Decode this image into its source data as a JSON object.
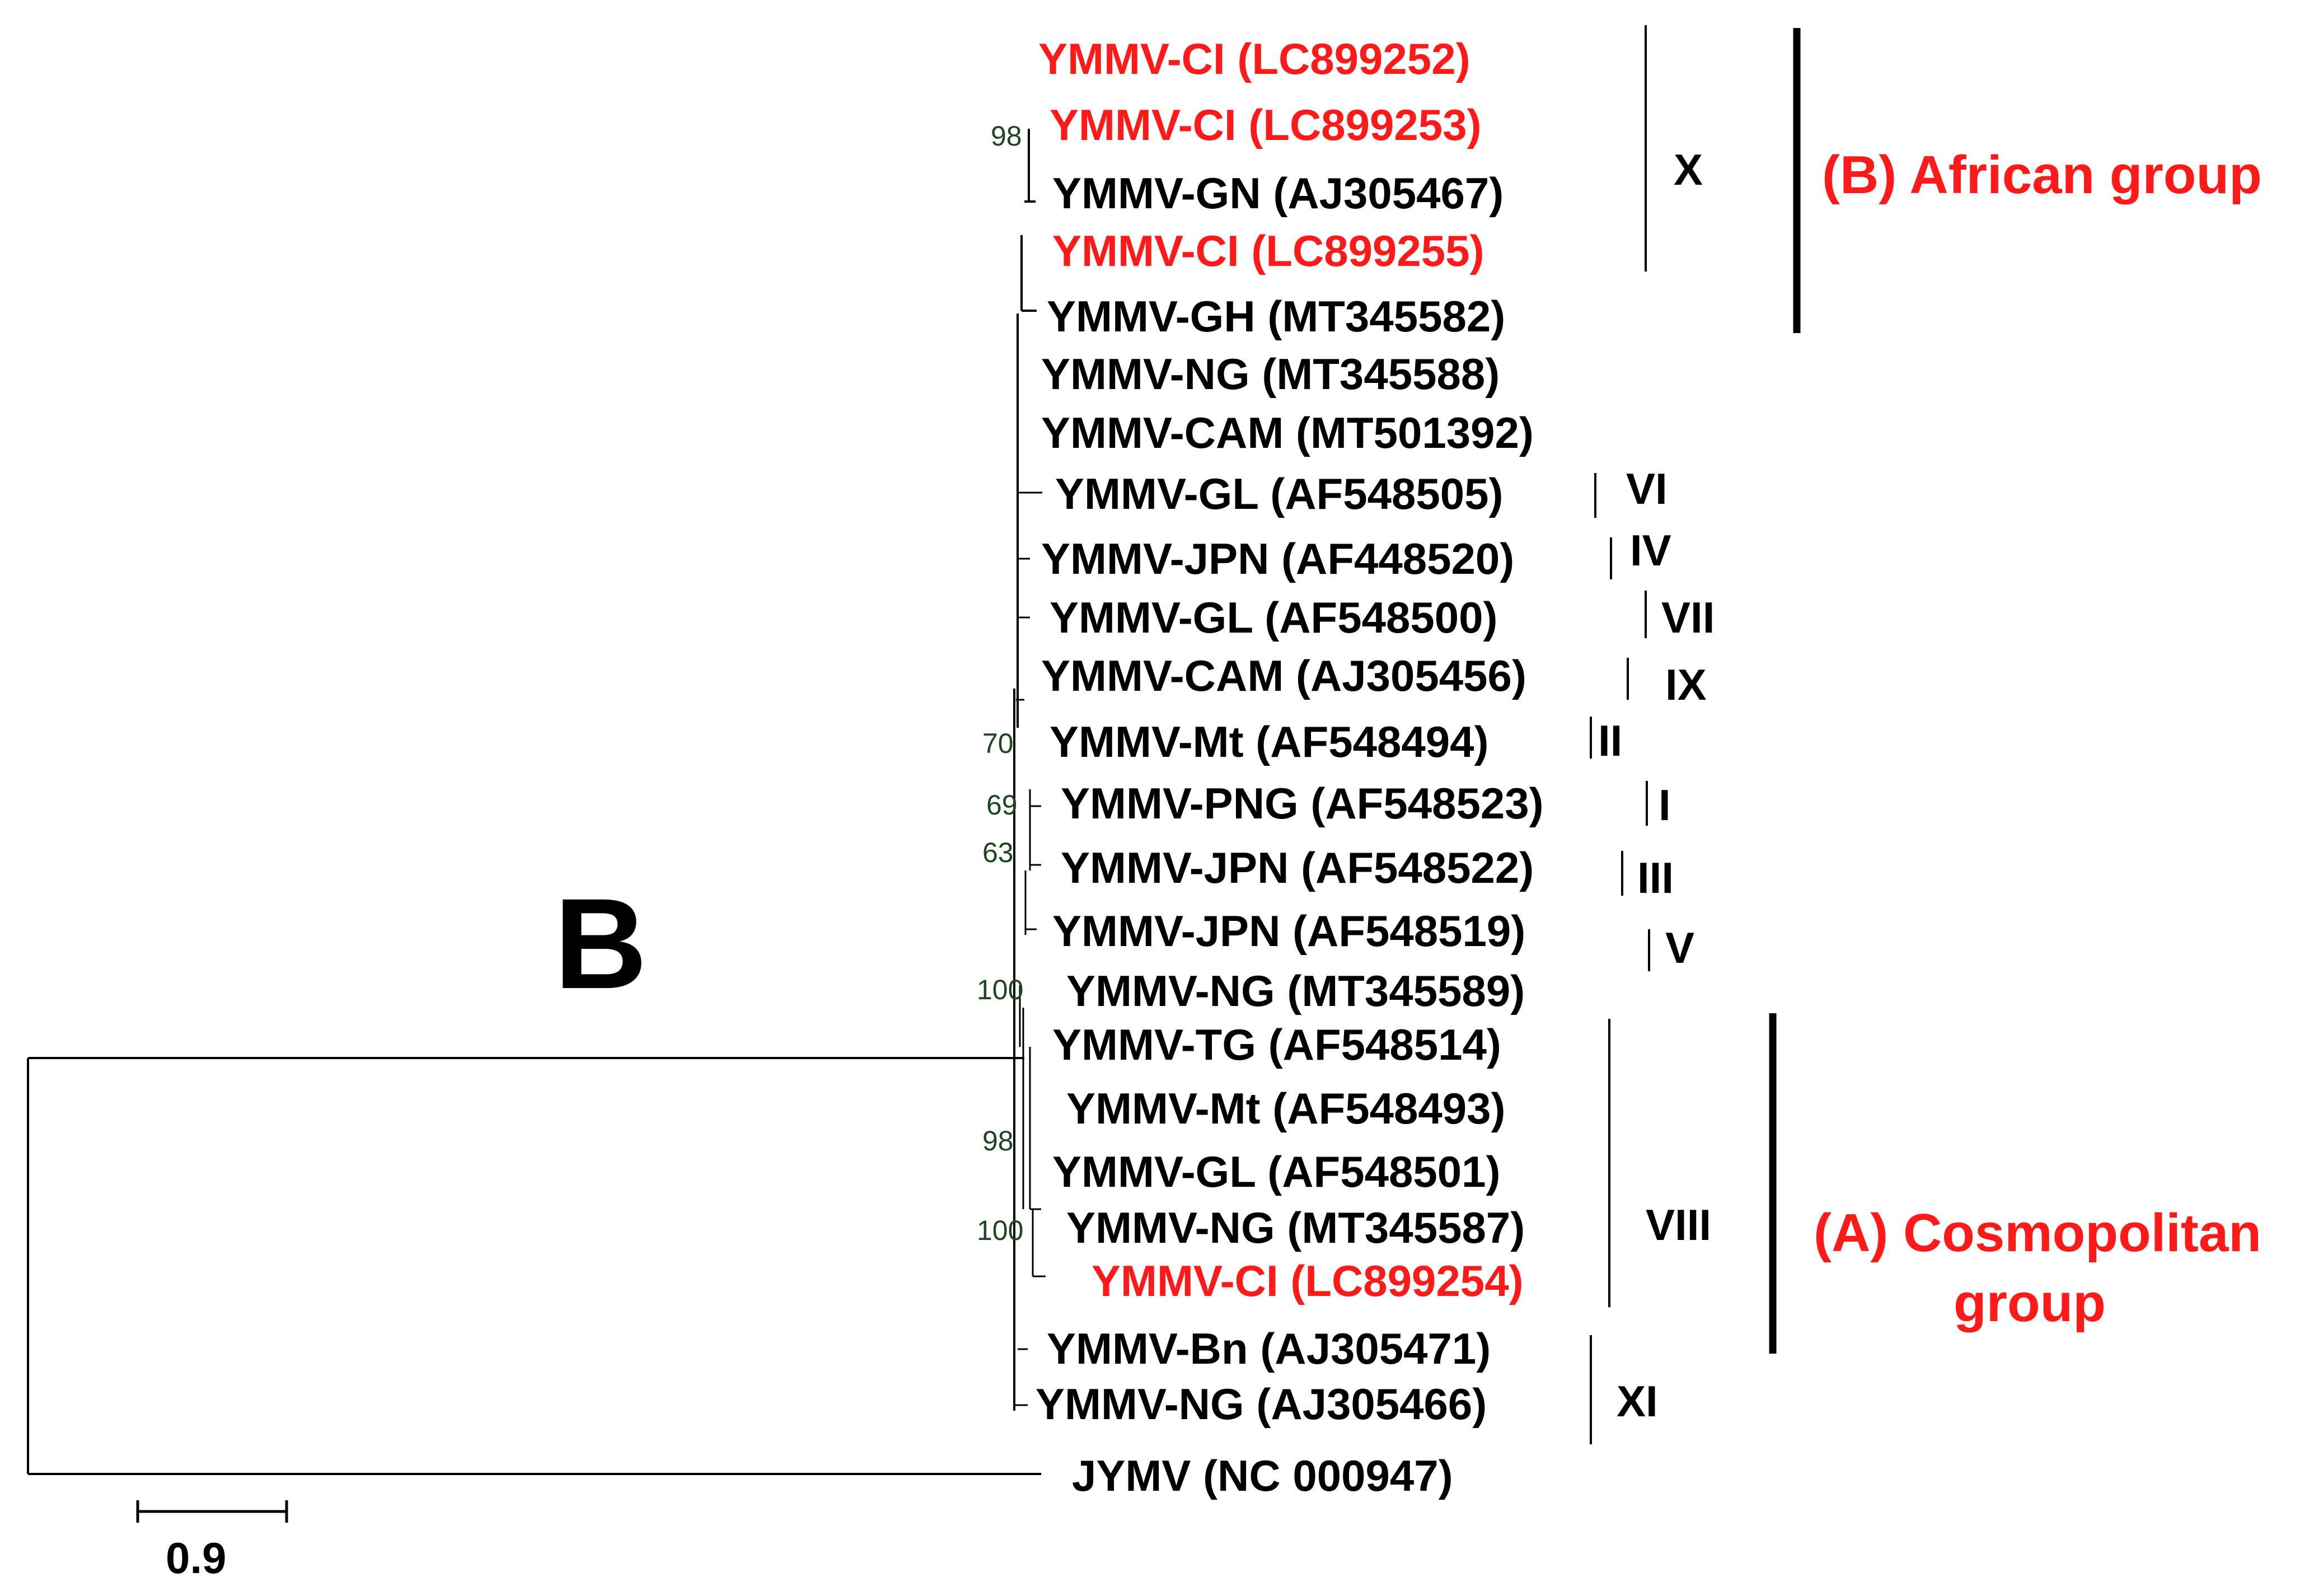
{
  "panel_letter": "B",
  "colors": {
    "default": "#000000",
    "highlight": "#ff1a1a",
    "bootstrap": "#1e4620"
  },
  "leaves": [
    {
      "label": "YMMV-CI (LC899252)",
      "highlight": true
    },
    {
      "label": "YMMV-CI (LC899253)",
      "highlight": true
    },
    {
      "label": "YMMV-GN (AJ305467)",
      "highlight": false
    },
    {
      "label": "YMMV-CI (LC899255)",
      "highlight": true
    },
    {
      "label": "YMMV-GH (MT345582)",
      "highlight": false
    },
    {
      "label": "YMMV-NG (MT345588)",
      "highlight": false
    },
    {
      "label": "YMMV-CAM (MT501392)",
      "highlight": false
    },
    {
      "label": "YMMV-GL (AF548505)",
      "highlight": false
    },
    {
      "label": "YMMV-JPN (AF448520)",
      "highlight": false
    },
    {
      "label": "YMMV-GL (AF548500)",
      "highlight": false
    },
    {
      "label": "YMMV-CAM (AJ305456)",
      "highlight": false
    },
    {
      "label": "YMMV-Mt (AF548494)",
      "highlight": false
    },
    {
      "label": "YMMV-PNG (AF548523)",
      "highlight": false
    },
    {
      "label": "YMMV-JPN (AF548522)",
      "highlight": false
    },
    {
      "label": "YMMV-JPN (AF548519)",
      "highlight": false
    },
    {
      "label": "YMMV-NG (MT345589)",
      "highlight": false
    },
    {
      "label": "YMMV-TG (AF548514)",
      "highlight": false
    },
    {
      "label": "YMMV-Mt (AF548493)",
      "highlight": false
    },
    {
      "label": "YMMV-GL (AF548501)",
      "highlight": false
    },
    {
      "label": "YMMV-NG (MT345587)",
      "highlight": false
    },
    {
      "label": "YMMV-CI (LC899254)",
      "highlight": true
    },
    {
      "label": "YMMV-Bn (AJ305471)",
      "highlight": false
    },
    {
      "label": "YMMV-NG (AJ305466)",
      "highlight": false
    },
    {
      "label": "JYMV (NC 000947)",
      "highlight": false
    }
  ],
  "bootstrap_values": [
    "98",
    "70",
    "69",
    "63",
    "100",
    "98",
    "100"
  ],
  "clades": [
    "X",
    "VI",
    "IV",
    "VII",
    "IX",
    "II",
    "I",
    "III",
    "V",
    "VIII",
    "XI"
  ],
  "groups": [
    {
      "lines": [
        "(B) African group"
      ],
      "color": "#ff1a1a"
    },
    {
      "lines": [
        "(A) Cosmopolitan",
        "group"
      ],
      "color": "#ff1a1a"
    }
  ],
  "scale_bar": {
    "label": "0.9"
  }
}
